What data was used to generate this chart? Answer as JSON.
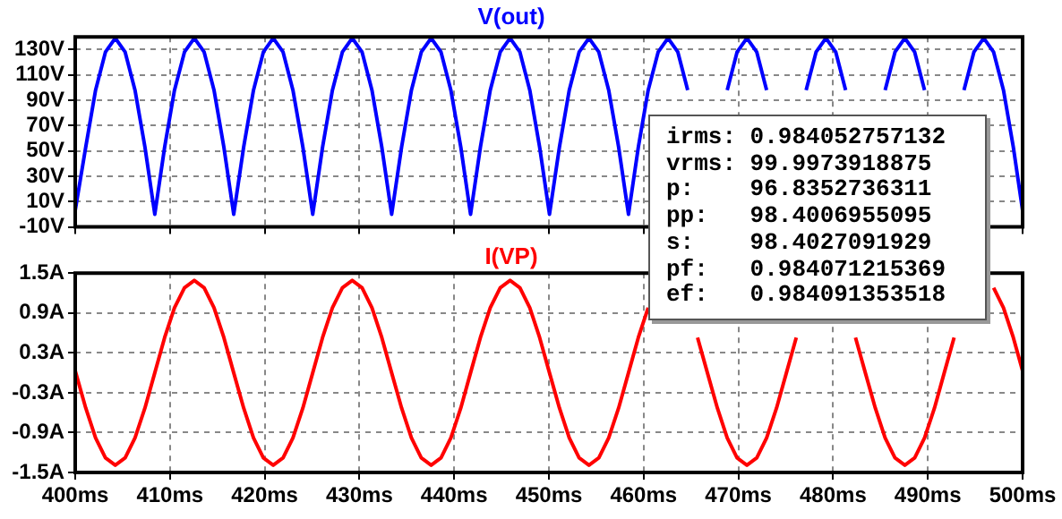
{
  "chart_data": [
    {
      "type": "line",
      "title": "V(out)",
      "x": [
        400,
        401.11,
        402.15,
        403.19,
        404.23,
        405.27,
        406.31,
        407.36,
        408.4,
        409.44,
        410.48,
        411.53,
        412.57,
        413.61,
        414.65,
        415.69,
        416.73,
        417.78,
        418.82,
        419.86,
        420.9,
        421.94,
        422.98,
        424.03,
        425.07,
        426.11,
        427.15,
        428.2,
        429.24,
        430.28,
        431.32,
        432.36,
        433.4,
        434.45,
        435.49,
        436.53,
        437.57,
        438.61,
        439.65,
        440.7,
        441.73,
        442.77,
        443.81,
        444.86,
        445.9,
        446.94,
        447.98,
        449.02,
        450.06,
        451.11,
        452.15,
        453.19,
        454.23,
        455.27,
        456.31,
        457.36,
        458.4,
        459.44,
        460.48,
        461.53,
        462.57,
        463.61,
        464.65,
        465.69,
        466.73,
        467.78,
        468.82,
        469.86,
        470.9,
        471.94,
        472.98,
        474.03,
        475.07,
        476.11,
        477.15,
        478.2,
        479.24,
        480.28,
        481.32,
        482.36,
        483.4,
        484.45,
        485.49,
        486.53,
        487.57,
        488.61,
        489.65,
        490.7,
        491.73,
        492.77,
        493.81,
        494.86,
        495.9,
        496.94,
        497.98,
        499.02,
        500
      ],
      "series": [
        {
          "color": "#0000ff",
          "values": [
            3,
            53,
            98,
            128,
            139,
            128,
            98,
            53,
            0,
            53,
            98,
            128,
            139,
            128,
            98,
            53,
            0,
            53,
            98,
            128,
            139,
            128,
            98,
            53,
            0,
            53,
            98,
            128,
            139,
            128,
            98,
            53,
            0,
            53,
            98,
            128,
            139,
            128,
            98,
            53,
            0,
            53,
            98,
            128,
            139,
            128,
            98,
            53,
            0,
            53,
            98,
            128,
            139,
            128,
            98,
            53,
            0,
            53,
            98,
            128,
            139,
            128,
            98,
            null,
            null,
            null,
            98,
            128,
            139,
            128,
            98,
            null,
            null,
            null,
            98,
            128,
            139,
            128,
            98,
            null,
            null,
            null,
            98,
            128,
            139,
            128,
            98,
            null,
            null,
            null,
            98,
            128,
            139,
            128,
            98,
            53,
            3
          ]
        }
      ],
      "xlim": [
        400,
        500
      ],
      "xticks": [
        {
          "value": 400,
          "label": null
        },
        {
          "value": 410,
          "label": null
        },
        {
          "value": 420,
          "label": null
        },
        {
          "value": 430,
          "label": null
        },
        {
          "value": 440,
          "label": null
        },
        {
          "value": 450,
          "label": null
        },
        {
          "value": 460,
          "label": null
        },
        {
          "value": 470,
          "label": null
        },
        {
          "value": 480,
          "label": null
        },
        {
          "value": 490,
          "label": null
        },
        {
          "value": 500,
          "label": null
        }
      ],
      "ylim": [
        -10,
        140
      ],
      "yticks": [
        {
          "value": -10,
          "label": "-10V"
        },
        {
          "value": 10,
          "label": "10V"
        },
        {
          "value": 30,
          "label": "30V"
        },
        {
          "value": 50,
          "label": "50V"
        },
        {
          "value": 70,
          "label": "70V"
        },
        {
          "value": 90,
          "label": "90V"
        },
        {
          "value": 110,
          "label": "110V"
        },
        {
          "value": 130,
          "label": "130V"
        }
      ],
      "grid": true,
      "line_style": "solid",
      "tick_labels": "y",
      "annotations": [
        "irms: 0.984052757132",
        "vrms: 99.9973918875",
        "p:    96.8352736311",
        "pp:   98.4006955095",
        "s:    98.4027091929",
        "pf:   0.984071215369",
        "ef:   0.984091353518"
      ]
    },
    {
      "type": "line",
      "title": "I(VP)",
      "x": [
        400,
        401.11,
        402.15,
        403.19,
        404.23,
        405.27,
        406.31,
        407.36,
        408.4,
        409.44,
        410.48,
        411.53,
        412.57,
        413.61,
        414.65,
        415.69,
        416.73,
        417.78,
        418.82,
        419.86,
        420.9,
        421.94,
        422.98,
        424.03,
        425.07,
        426.11,
        427.15,
        428.2,
        429.24,
        430.28,
        431.32,
        432.36,
        433.4,
        434.45,
        435.49,
        436.53,
        437.57,
        438.61,
        439.65,
        440.7,
        441.73,
        442.77,
        443.81,
        444.86,
        445.9,
        446.94,
        447.98,
        449.02,
        450.06,
        451.11,
        452.15,
        453.19,
        454.23,
        455.27,
        456.31,
        457.36,
        458.4,
        459.44,
        460.48,
        461.53,
        462.57,
        463.61,
        464.65,
        465.69,
        466.73,
        467.78,
        468.82,
        469.86,
        470.9,
        471.94,
        472.98,
        474.03,
        475.07,
        476.11,
        477.15,
        478.2,
        479.24,
        480.28,
        481.32,
        482.36,
        483.4,
        484.45,
        485.49,
        486.53,
        487.57,
        488.61,
        489.65,
        490.7,
        491.73,
        492.77,
        493.81,
        494.86,
        495.9,
        496.94,
        497.98,
        499.02,
        500
      ],
      "series": [
        {
          "color": "#ff0000",
          "values": [
            0.03,
            -0.53,
            -0.98,
            -1.28,
            -1.39,
            -1.28,
            -0.98,
            -0.53,
            0,
            0.53,
            0.98,
            1.28,
            1.39,
            1.28,
            0.98,
            0.53,
            0,
            -0.53,
            -0.98,
            -1.28,
            -1.39,
            -1.28,
            -0.98,
            -0.53,
            0,
            0.53,
            0.98,
            1.28,
            1.39,
            1.28,
            0.98,
            0.53,
            0,
            -0.53,
            -0.98,
            -1.28,
            -1.39,
            -1.28,
            -0.98,
            -0.53,
            0,
            0.53,
            0.98,
            1.28,
            1.39,
            1.28,
            0.98,
            0.53,
            0,
            -0.53,
            -0.98,
            -1.28,
            -1.39,
            -1.28,
            -0.98,
            -0.53,
            0,
            0.53,
            0.98,
            null,
            null,
            null,
            null,
            0.53,
            0,
            -0.53,
            -0.98,
            -1.28,
            -1.39,
            -1.28,
            -0.98,
            -0.53,
            0,
            0.53,
            null,
            null,
            null,
            null,
            null,
            0.53,
            0,
            -0.53,
            -0.98,
            -1.28,
            -1.39,
            -1.28,
            -0.98,
            -0.53,
            0,
            0.53,
            null,
            null,
            null,
            1.28,
            0.98,
            0.53,
            0.03
          ]
        }
      ],
      "xlim": [
        400,
        500
      ],
      "xticks": [
        {
          "value": 400,
          "label": "400ms"
        },
        {
          "value": 410,
          "label": "410ms"
        },
        {
          "value": 420,
          "label": "420ms"
        },
        {
          "value": 430,
          "label": "430ms"
        },
        {
          "value": 440,
          "label": "440ms"
        },
        {
          "value": 450,
          "label": "450ms"
        },
        {
          "value": 460,
          "label": "460ms"
        },
        {
          "value": 470,
          "label": "470ms"
        },
        {
          "value": 480,
          "label": "480ms"
        },
        {
          "value": 490,
          "label": "490ms"
        },
        {
          "value": 500,
          "label": "500ms"
        }
      ],
      "ylim": [
        -1.5,
        1.5
      ],
      "yticks": [
        {
          "value": -1.5,
          "label": "-1.5A"
        },
        {
          "value": -0.9,
          "label": "-0.9A"
        },
        {
          "value": -0.3,
          "label": "-0.3A"
        },
        {
          "value": 0.3,
          "label": "0.3A"
        },
        {
          "value": 0.9,
          "label": "0.9A"
        },
        {
          "value": 1.5,
          "label": "1.5A"
        }
      ],
      "grid": true,
      "line_style": "solid"
    }
  ]
}
